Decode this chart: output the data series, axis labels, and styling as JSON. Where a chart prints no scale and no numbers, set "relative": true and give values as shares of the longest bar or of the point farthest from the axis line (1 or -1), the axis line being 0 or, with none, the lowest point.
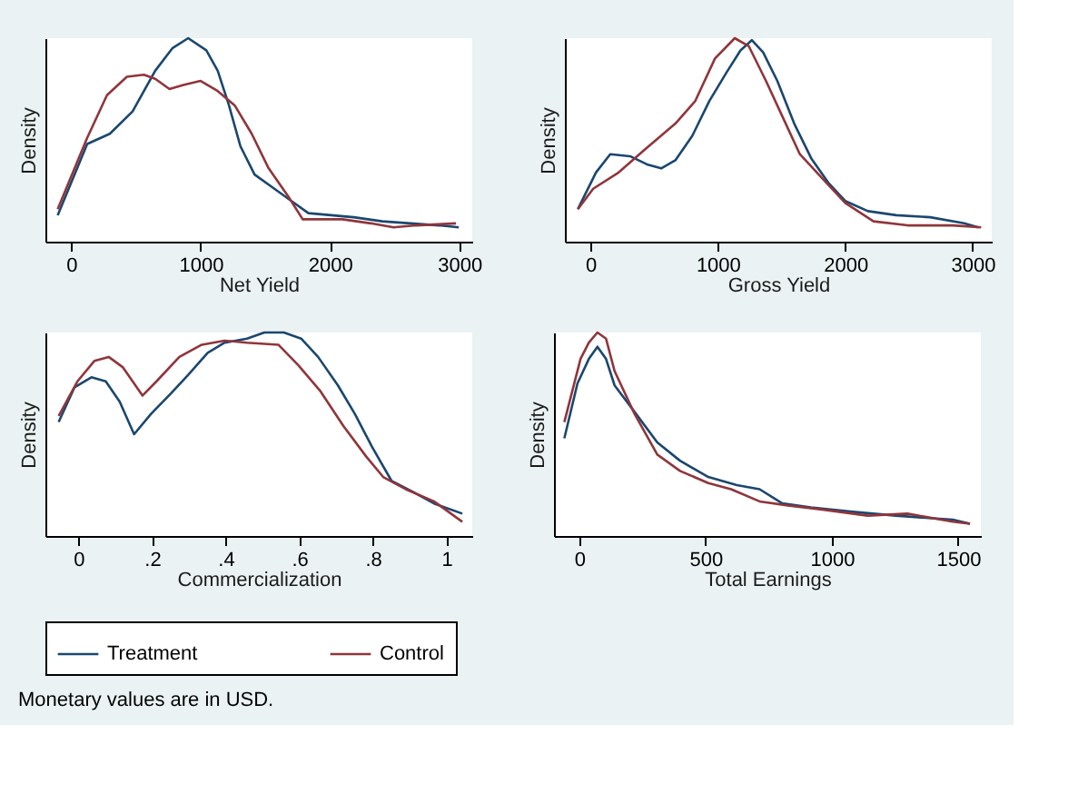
{
  "chart_data": [
    {
      "type": "line",
      "xlabel": "Net Yield",
      "ylabel": "Density",
      "relative": true,
      "xlim": [
        -200,
        3100
      ],
      "xticks": [
        0,
        1000,
        2000,
        3000
      ],
      "grid": false,
      "legend": "bottom",
      "marker": "none",
      "line_style": "solid",
      "series": [
        {
          "name": "Treatment",
          "color": "#1a476f",
          "x": [
            -105,
            123,
            298,
            474,
            649,
            781,
            904,
            1044,
            1132,
            1219,
            1307,
            1417,
            1570,
            1702,
            1833,
            2009,
            2184,
            2404,
            2623,
            2842,
            2996
          ],
          "values": [
            0.13,
            0.48,
            0.53,
            0.64,
            0.84,
            0.95,
            1,
            0.94,
            0.84,
            0.67,
            0.47,
            0.33,
            0.26,
            0.2,
            0.14,
            0.13,
            0.12,
            0.1,
            0.09,
            0.08,
            0.07
          ]
        },
        {
          "name": "Control",
          "color": "#90353b",
          "x": [
            -105,
            123,
            276,
            430,
            561,
            649,
            759,
            868,
            1000,
            1132,
            1263,
            1395,
            1526,
            1680,
            1789,
            2096,
            2316,
            2491,
            2667,
            2974
          ],
          "values": [
            0.16,
            0.51,
            0.72,
            0.81,
            0.82,
            0.8,
            0.75,
            0.77,
            0.79,
            0.74,
            0.67,
            0.53,
            0.36,
            0.22,
            0.11,
            0.11,
            0.09,
            0.07,
            0.08,
            0.09
          ]
        }
      ]
    },
    {
      "type": "line",
      "xlabel": "Gross Yield",
      "ylabel": "Density",
      "relative": true,
      "xlim": [
        -200,
        3150
      ],
      "xticks": [
        0,
        1000,
        2000,
        3000
      ],
      "grid": false,
      "legend": "bottom",
      "marker": "none",
      "line_style": "solid",
      "series": [
        {
          "name": "Treatment",
          "color": "#1a476f",
          "x": [
            -98,
            44,
            156,
            311,
            444,
            556,
            667,
            800,
            933,
            1067,
            1178,
            1267,
            1356,
            1467,
            1600,
            1733,
            1867,
            2000,
            2178,
            2400,
            2667,
            2933,
            3044
          ],
          "values": [
            0.16,
            0.34,
            0.43,
            0.42,
            0.38,
            0.36,
            0.4,
            0.52,
            0.69,
            0.83,
            0.94,
            0.99,
            0.93,
            0.79,
            0.58,
            0.41,
            0.29,
            0.2,
            0.15,
            0.13,
            0.12,
            0.09,
            0.07
          ]
        },
        {
          "name": "Control",
          "color": "#90353b",
          "x": [
            -98,
            22,
            222,
            422,
            667,
            822,
            978,
            1133,
            1244,
            1378,
            1511,
            1644,
            1822,
            2000,
            2222,
            2489,
            2844,
            3067
          ],
          "values": [
            0.16,
            0.26,
            0.34,
            0.45,
            0.58,
            0.69,
            0.9,
            1,
            0.96,
            0.79,
            0.61,
            0.43,
            0.31,
            0.19,
            0.1,
            0.08,
            0.08,
            0.07
          ]
        }
      ]
    },
    {
      "type": "line",
      "xlabel": "Commercialization",
      "ylabel": "Density",
      "relative": true,
      "xlim": [
        -0.09,
        1.07
      ],
      "xticks": [
        {
          "value": 0,
          "label": "0"
        },
        {
          "value": 0.2,
          "label": ".2"
        },
        {
          "value": 0.4,
          "label": ".4"
        },
        {
          "value": 0.6,
          "label": ".6"
        },
        {
          "value": 0.8,
          "label": ".8"
        },
        {
          "value": 1,
          "label": "1"
        }
      ],
      "grid": false,
      "legend": "bottom",
      "marker": "none",
      "line_style": "solid",
      "series": [
        {
          "name": "Treatment",
          "color": "#1a476f",
          "x": [
            -0.054,
            -0.011,
            0.035,
            0.074,
            0.112,
            0.151,
            0.197,
            0.251,
            0.297,
            0.351,
            0.397,
            0.458,
            0.505,
            0.558,
            0.605,
            0.651,
            0.705,
            0.751,
            0.797,
            0.851,
            0.905,
            0.966,
            1.043
          ],
          "values": [
            0.56,
            0.73,
            0.78,
            0.76,
            0.66,
            0.5,
            0.6,
            0.7,
            0.79,
            0.9,
            0.95,
            0.97,
            1,
            1,
            0.97,
            0.88,
            0.74,
            0.6,
            0.44,
            0.27,
            0.22,
            0.16,
            0.11
          ]
        },
        {
          "name": "Control",
          "color": "#90353b",
          "x": [
            -0.054,
            -0.003,
            0.043,
            0.082,
            0.12,
            0.174,
            0.212,
            0.274,
            0.335,
            0.397,
            0.458,
            0.543,
            0.597,
            0.658,
            0.72,
            0.782,
            0.828,
            0.889,
            0.966,
            1.043
          ],
          "values": [
            0.59,
            0.76,
            0.86,
            0.88,
            0.83,
            0.69,
            0.76,
            0.88,
            0.94,
            0.96,
            0.95,
            0.94,
            0.84,
            0.71,
            0.54,
            0.39,
            0.29,
            0.23,
            0.17,
            0.07
          ]
        }
      ]
    },
    {
      "type": "line",
      "xlabel": "Total Earnings",
      "ylabel": "Density",
      "relative": true,
      "xlim": [
        -100,
        1590
      ],
      "xticks": [
        0,
        500,
        1000,
        1500
      ],
      "grid": false,
      "legend": "bottom",
      "marker": "none",
      "line_style": "solid",
      "annotations": [
        "Monetary values are in USD."
      ],
      "series": [
        {
          "name": "Treatment",
          "color": "#1a476f",
          "x": [
            -59,
            -7,
            38,
            72,
            106,
            140,
            219,
            309,
            399,
            511,
            624,
            714,
            804,
            917,
            1074,
            1254,
            1479,
            1547
          ],
          "values": [
            0.48,
            0.75,
            0.87,
            0.93,
            0.87,
            0.74,
            0.61,
            0.46,
            0.37,
            0.29,
            0.25,
            0.23,
            0.16,
            0.14,
            0.12,
            0.1,
            0.08,
            0.06
          ]
        },
        {
          "name": "Control",
          "color": "#90353b",
          "x": [
            -59,
            5,
            38,
            72,
            106,
            140,
            219,
            309,
            399,
            511,
            601,
            714,
            826,
            962,
            1142,
            1299,
            1479,
            1547
          ],
          "values": [
            0.56,
            0.87,
            0.95,
            1,
            0.97,
            0.81,
            0.6,
            0.4,
            0.32,
            0.26,
            0.23,
            0.17,
            0.15,
            0.13,
            0.1,
            0.11,
            0.07,
            0.06
          ]
        }
      ]
    }
  ]
}
